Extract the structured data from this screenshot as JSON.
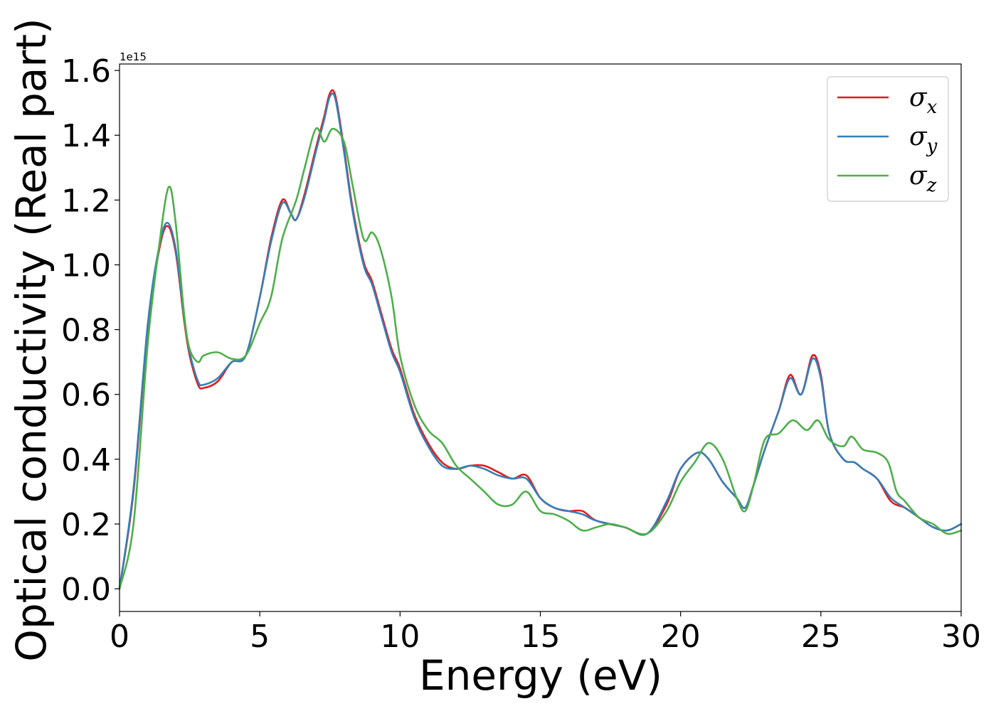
{
  "chart_data": {
    "type": "line",
    "xlabel": "Energy (eV)",
    "ylabel": "Optical conductivity (Real part)",
    "y_offset_label": "1e15",
    "xlim": [
      0,
      30
    ],
    "ylim": [
      -0.07,
      1.62
    ],
    "x_ticks": [
      0,
      5,
      10,
      15,
      20,
      25,
      30
    ],
    "x_tick_labels": [
      "0",
      "5",
      "10",
      "15",
      "20",
      "25",
      "30"
    ],
    "y_ticks": [
      0.0,
      0.2,
      0.4,
      0.6,
      0.8,
      1.0,
      1.2,
      1.4,
      1.6
    ],
    "y_tick_labels": [
      "0.0",
      "0.2",
      "0.4",
      "0.6",
      "0.8",
      "1.0",
      "1.2",
      "1.4",
      "1.6"
    ],
    "grid": false,
    "legend_position": "top-right",
    "series": [
      {
        "name": "σx",
        "symbol": "σ",
        "subscript": "x",
        "color": "#e41a1c",
        "points": [
          [
            0,
            0
          ],
          [
            0.5,
            0.3
          ],
          [
            1.0,
            0.8
          ],
          [
            1.4,
            1.04
          ],
          [
            1.7,
            1.12
          ],
          [
            2.0,
            1.04
          ],
          [
            2.3,
            0.83
          ],
          [
            2.5,
            0.72
          ],
          [
            2.8,
            0.63
          ],
          [
            3.0,
            0.62
          ],
          [
            3.5,
            0.64
          ],
          [
            4.0,
            0.7
          ],
          [
            4.5,
            0.72
          ],
          [
            5.0,
            0.9
          ],
          [
            5.4,
            1.08
          ],
          [
            5.8,
            1.2
          ],
          [
            6.1,
            1.16
          ],
          [
            6.3,
            1.14
          ],
          [
            6.6,
            1.22
          ],
          [
            7.0,
            1.36
          ],
          [
            7.3,
            1.46
          ],
          [
            7.5,
            1.53
          ],
          [
            7.7,
            1.52
          ],
          [
            8.0,
            1.36
          ],
          [
            8.3,
            1.18
          ],
          [
            8.7,
            1.01
          ],
          [
            9.0,
            0.95
          ],
          [
            9.3,
            0.86
          ],
          [
            9.7,
            0.74
          ],
          [
            10.0,
            0.68
          ],
          [
            10.5,
            0.54
          ],
          [
            11.0,
            0.45
          ],
          [
            11.5,
            0.39
          ],
          [
            12.0,
            0.37
          ],
          [
            12.5,
            0.38
          ],
          [
            13.0,
            0.38
          ],
          [
            13.5,
            0.36
          ],
          [
            14.0,
            0.34
          ],
          [
            14.5,
            0.35
          ],
          [
            15.0,
            0.28
          ],
          [
            15.5,
            0.25
          ],
          [
            16.0,
            0.24
          ],
          [
            16.5,
            0.24
          ],
          [
            17.0,
            0.21
          ],
          [
            18.0,
            0.19
          ],
          [
            18.8,
            0.17
          ],
          [
            19.5,
            0.26
          ],
          [
            20.0,
            0.37
          ],
          [
            20.6,
            0.42
          ],
          [
            21.0,
            0.4
          ],
          [
            21.5,
            0.33
          ],
          [
            22.0,
            0.28
          ],
          [
            22.3,
            0.25
          ],
          [
            22.6,
            0.32
          ],
          [
            23.0,
            0.43
          ],
          [
            23.5,
            0.55
          ],
          [
            23.9,
            0.66
          ],
          [
            24.3,
            0.6
          ],
          [
            24.7,
            0.72
          ],
          [
            25.0,
            0.66
          ],
          [
            25.3,
            0.48
          ],
          [
            25.8,
            0.4
          ],
          [
            26.2,
            0.39
          ],
          [
            26.5,
            0.37
          ],
          [
            27.0,
            0.34
          ],
          [
            27.5,
            0.27
          ],
          [
            28.0,
            0.25
          ],
          [
            28.5,
            0.22
          ],
          [
            29.0,
            0.19
          ],
          [
            29.5,
            0.18
          ],
          [
            30.0,
            0.2
          ]
        ]
      },
      {
        "name": "σy",
        "symbol": "σ",
        "subscript": "y",
        "color": "#377eb8",
        "points": [
          [
            0,
            0
          ],
          [
            0.5,
            0.31
          ],
          [
            1.0,
            0.81
          ],
          [
            1.4,
            1.05
          ],
          [
            1.7,
            1.13
          ],
          [
            2.0,
            1.05
          ],
          [
            2.3,
            0.84
          ],
          [
            2.5,
            0.73
          ],
          [
            2.8,
            0.64
          ],
          [
            3.0,
            0.63
          ],
          [
            3.5,
            0.65
          ],
          [
            4.0,
            0.7
          ],
          [
            4.5,
            0.72
          ],
          [
            5.0,
            0.9
          ],
          [
            5.4,
            1.07
          ],
          [
            5.8,
            1.19
          ],
          [
            6.1,
            1.16
          ],
          [
            6.3,
            1.14
          ],
          [
            6.6,
            1.21
          ],
          [
            7.0,
            1.35
          ],
          [
            7.3,
            1.45
          ],
          [
            7.5,
            1.52
          ],
          [
            7.7,
            1.51
          ],
          [
            8.0,
            1.35
          ],
          [
            8.3,
            1.17
          ],
          [
            8.7,
            1.0
          ],
          [
            9.0,
            0.94
          ],
          [
            9.3,
            0.85
          ],
          [
            9.7,
            0.73
          ],
          [
            10.0,
            0.67
          ],
          [
            10.5,
            0.53
          ],
          [
            11.0,
            0.44
          ],
          [
            11.5,
            0.38
          ],
          [
            12.0,
            0.37
          ],
          [
            12.5,
            0.38
          ],
          [
            13.0,
            0.37
          ],
          [
            13.5,
            0.35
          ],
          [
            14.0,
            0.34
          ],
          [
            14.5,
            0.34
          ],
          [
            15.0,
            0.28
          ],
          [
            15.5,
            0.25
          ],
          [
            16.0,
            0.24
          ],
          [
            16.5,
            0.23
          ],
          [
            17.0,
            0.21
          ],
          [
            18.0,
            0.19
          ],
          [
            18.8,
            0.17
          ],
          [
            19.5,
            0.27
          ],
          [
            20.0,
            0.37
          ],
          [
            20.6,
            0.42
          ],
          [
            21.0,
            0.4
          ],
          [
            21.5,
            0.33
          ],
          [
            22.0,
            0.28
          ],
          [
            22.3,
            0.25
          ],
          [
            22.6,
            0.32
          ],
          [
            23.0,
            0.43
          ],
          [
            23.5,
            0.55
          ],
          [
            23.9,
            0.65
          ],
          [
            24.3,
            0.6
          ],
          [
            24.7,
            0.71
          ],
          [
            25.0,
            0.65
          ],
          [
            25.3,
            0.48
          ],
          [
            25.8,
            0.4
          ],
          [
            26.2,
            0.39
          ],
          [
            26.5,
            0.37
          ],
          [
            27.0,
            0.34
          ],
          [
            27.5,
            0.28
          ],
          [
            28.0,
            0.25
          ],
          [
            28.5,
            0.22
          ],
          [
            29.0,
            0.19
          ],
          [
            29.5,
            0.18
          ],
          [
            30.0,
            0.2
          ]
        ]
      },
      {
        "name": "σz",
        "symbol": "σ",
        "subscript": "z",
        "color": "#4daf4a",
        "points": [
          [
            0,
            0
          ],
          [
            0.5,
            0.2
          ],
          [
            1.0,
            0.75
          ],
          [
            1.4,
            1.05
          ],
          [
            1.75,
            1.24
          ],
          [
            2.0,
            1.13
          ],
          [
            2.3,
            0.85
          ],
          [
            2.5,
            0.74
          ],
          [
            2.8,
            0.7
          ],
          [
            3.0,
            0.72
          ],
          [
            3.5,
            0.73
          ],
          [
            4.0,
            0.71
          ],
          [
            4.5,
            0.72
          ],
          [
            5.0,
            0.82
          ],
          [
            5.4,
            0.9
          ],
          [
            5.8,
            1.08
          ],
          [
            6.3,
            1.2
          ],
          [
            6.6,
            1.3
          ],
          [
            7.0,
            1.42
          ],
          [
            7.3,
            1.38
          ],
          [
            7.6,
            1.42
          ],
          [
            8.0,
            1.38
          ],
          [
            8.3,
            1.25
          ],
          [
            8.7,
            1.08
          ],
          [
            9.0,
            1.1
          ],
          [
            9.3,
            1.05
          ],
          [
            9.7,
            0.9
          ],
          [
            10.0,
            0.72
          ],
          [
            10.5,
            0.57
          ],
          [
            11.0,
            0.49
          ],
          [
            11.5,
            0.45
          ],
          [
            12.0,
            0.38
          ],
          [
            12.5,
            0.34
          ],
          [
            13.0,
            0.3
          ],
          [
            13.5,
            0.26
          ],
          [
            14.0,
            0.26
          ],
          [
            14.5,
            0.3
          ],
          [
            15.0,
            0.24
          ],
          [
            15.5,
            0.23
          ],
          [
            16.0,
            0.21
          ],
          [
            16.5,
            0.18
          ],
          [
            17.0,
            0.19
          ],
          [
            17.5,
            0.2
          ],
          [
            18.0,
            0.19
          ],
          [
            18.8,
            0.17
          ],
          [
            19.5,
            0.24
          ],
          [
            20.0,
            0.33
          ],
          [
            20.5,
            0.39
          ],
          [
            21.0,
            0.45
          ],
          [
            21.5,
            0.4
          ],
          [
            22.0,
            0.28
          ],
          [
            22.3,
            0.24
          ],
          [
            22.6,
            0.32
          ],
          [
            23.0,
            0.46
          ],
          [
            23.5,
            0.48
          ],
          [
            24.0,
            0.52
          ],
          [
            24.5,
            0.49
          ],
          [
            24.9,
            0.52
          ],
          [
            25.3,
            0.46
          ],
          [
            25.8,
            0.44
          ],
          [
            26.1,
            0.47
          ],
          [
            26.5,
            0.43
          ],
          [
            27.0,
            0.42
          ],
          [
            27.4,
            0.39
          ],
          [
            27.7,
            0.3
          ],
          [
            28.0,
            0.27
          ],
          [
            28.5,
            0.22
          ],
          [
            29.0,
            0.2
          ],
          [
            29.5,
            0.17
          ],
          [
            30.0,
            0.18
          ]
        ]
      }
    ]
  }
}
